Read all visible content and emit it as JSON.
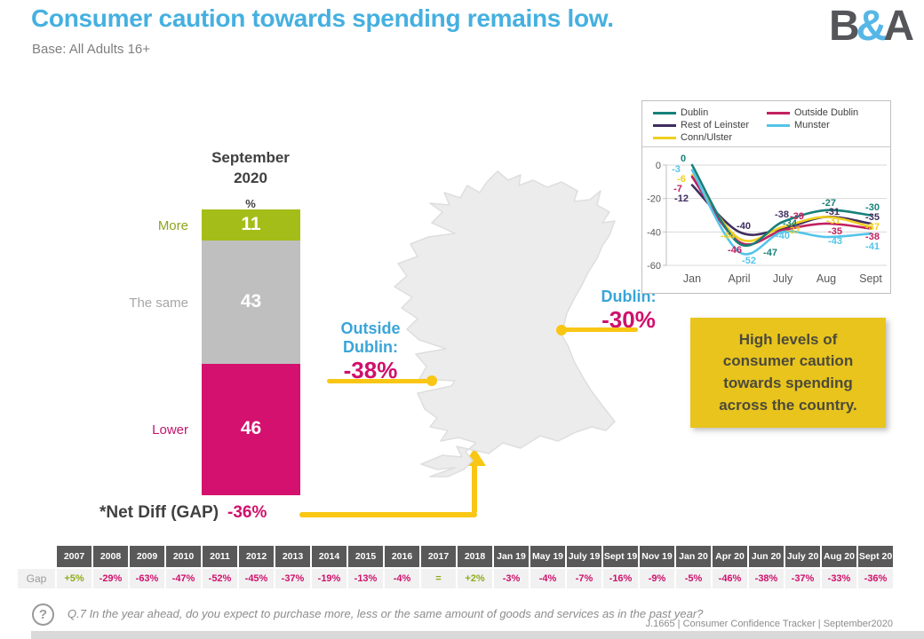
{
  "header": {
    "title": "Consumer caution towards spending remains low.",
    "subtitle": "Base: All Adults 16+",
    "logo_b": "B",
    "logo_amp": "&",
    "logo_a": "A"
  },
  "bar_chart": {
    "title_line1": "September",
    "title_line2": "2020",
    "unit": "%",
    "segments": [
      {
        "label": "More",
        "value": "11",
        "color": "#a4bd18",
        "label_color": "#8ea51d"
      },
      {
        "label": "The same",
        "value": "43",
        "color": "#bfbfbf",
        "label_color": "#a6a6a6"
      },
      {
        "label": "Lower",
        "value": "46",
        "color": "#d4116e",
        "label_color": "#c2156c"
      }
    ],
    "net_diff_label": "*Net Diff (GAP)",
    "net_diff_value": "-36%"
  },
  "map_callouts": {
    "outside_line1": "Outside",
    "outside_line2": "Dublin:",
    "outside_value": "-38%",
    "dublin_label": "Dublin:",
    "dublin_value": "-30%"
  },
  "highlight_box": {
    "text": "High levels of consumer caution towards spending across the country."
  },
  "chart_data": {
    "type": "line",
    "x": [
      "Jan",
      "April",
      "July",
      "Aug",
      "Sept"
    ],
    "ylim": [
      -60,
      0
    ],
    "yticks": [
      "0",
      "-20",
      "-40",
      "-60"
    ],
    "grid": true,
    "legend_position": "top",
    "series": [
      {
        "name": "Dublin",
        "color": "#18807a",
        "values": [
          0,
          -47,
          -34,
          -27,
          -30
        ]
      },
      {
        "name": "Outside Dublin",
        "color": "#c22160",
        "values": [
          -7,
          -46,
          -39,
          -35,
          -38
        ]
      },
      {
        "name": "Rest of Leinster",
        "color": "#3e2d5f",
        "values": [
          -12,
          -40,
          -38,
          -31,
          -35
        ]
      },
      {
        "name": "Munster",
        "color": "#54c4e9",
        "values": [
          -3,
          -52,
          -40,
          -43,
          -41
        ]
      },
      {
        "name": "Conn/Ulster",
        "color": "#f0cf1f",
        "values": [
          -6,
          -44,
          -37,
          -31,
          -37
        ]
      }
    ]
  },
  "gap_table": {
    "row_label": "Gap",
    "columns": [
      "2007",
      "2008",
      "2009",
      "2010",
      "2011",
      "2012",
      "2013",
      "2014",
      "2015",
      "2016",
      "2017",
      "2018",
      "Jan 19",
      "May 19",
      "July 19",
      "Sept 19",
      "Nov 19",
      "Jan 20",
      "Apr 20",
      "Jun 20",
      "July 20",
      "Aug 20",
      "Sept 20"
    ],
    "values": [
      "+5%",
      "-29%",
      "-63%",
      "-47%",
      "-52%",
      "-45%",
      "-37%",
      "-19%",
      "-13%",
      "-4%",
      "=",
      "+2%",
      "-3%",
      "-4%",
      "-7%",
      "-16%",
      "-9%",
      "-5%",
      "-46%",
      "-38%",
      "-37%",
      "-33%",
      "-36%"
    ],
    "positive_color": "#8fad19",
    "negative_color": "#d0116b"
  },
  "footer": {
    "question_mark": "?",
    "question": "Q.7 In the year ahead, do you expect to purchase more, less or the same amount of goods and services as in the past year?",
    "meta": "J.1665  |  Consumer Confidence Tracker  |  September2020"
  }
}
